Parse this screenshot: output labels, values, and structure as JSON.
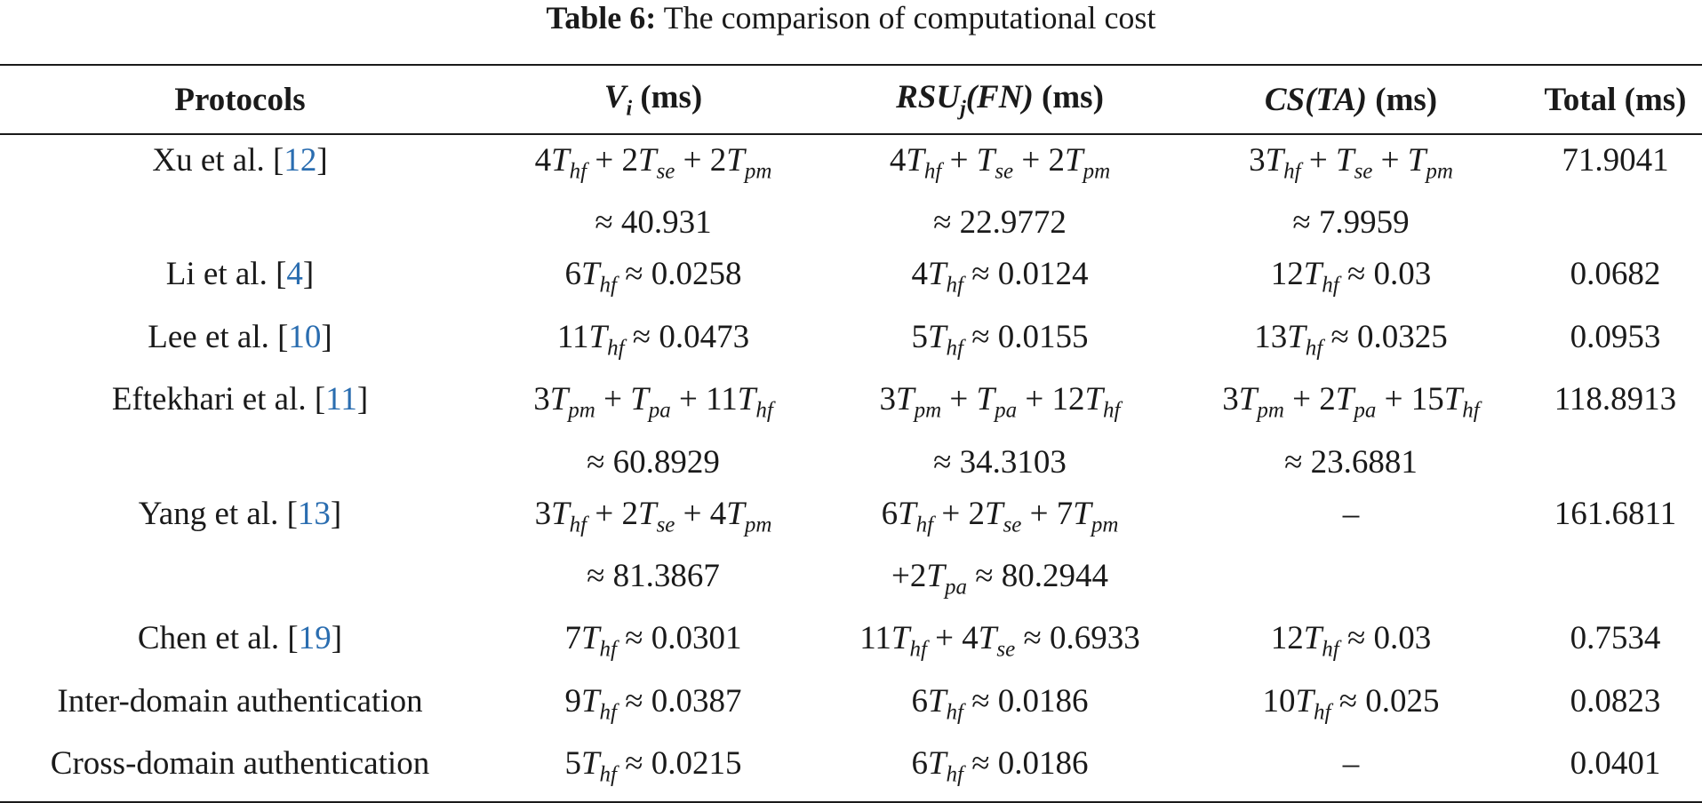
{
  "caption": {
    "label": "Table 6:",
    "text": "The comparison of computational cost"
  },
  "table": {
    "headers": [
      {
        "pre": "",
        "math": "Protocols",
        "post": ""
      },
      {
        "pre": "",
        "math": "V_i",
        "post": " (ms)"
      },
      {
        "pre": "",
        "math": "RSU_j(FN)",
        "post": " (ms)"
      },
      {
        "pre": "",
        "math": "CS(TA)",
        "post": " (ms)"
      },
      {
        "pre": "",
        "math": "Total (ms)",
        "post": ""
      }
    ],
    "rows": [
      {
        "protocol": "Xu et al. [",
        "ref": "12",
        "close": "]",
        "vi": [
          "4T_hf + 2T_se + 2T_pm",
          "≈ 40.931"
        ],
        "rsu": [
          "4T_hf + T_se + 2T_pm",
          "≈ 22.9772"
        ],
        "cs": [
          "3T_hf + T_se + T_pm",
          "≈ 7.9959"
        ],
        "total": "71.9041"
      },
      {
        "protocol": "Li et al. [",
        "ref": "4",
        "close": "]",
        "vi": [
          "6T_hf ≈ 0.0258"
        ],
        "rsu": [
          "4T_hf ≈ 0.0124"
        ],
        "cs": [
          "12T_hf ≈ 0.03"
        ],
        "total": "0.0682"
      },
      {
        "protocol": "Lee et al. [",
        "ref": "10",
        "close": "]",
        "vi": [
          "11T_hf ≈ 0.0473"
        ],
        "rsu": [
          "5T_hf ≈ 0.0155"
        ],
        "cs": [
          "13T_hf ≈ 0.0325"
        ],
        "total": "0.0953"
      },
      {
        "protocol": "Eftekhari et al. [",
        "ref": "11",
        "close": "]",
        "vi": [
          "3T_pm + T_pa + 11T_hf",
          "≈ 60.8929"
        ],
        "rsu": [
          "3T_pm + T_pa + 12T_hf",
          "≈ 34.3103"
        ],
        "cs": [
          "3T_pm + 2T_pa + 15T_hf",
          "≈ 23.6881"
        ],
        "total": "118.8913"
      },
      {
        "protocol": "Yang et al. [",
        "ref": "13",
        "close": "]",
        "vi": [
          "3T_hf + 2T_se + 4T_pm",
          "≈ 81.3867"
        ],
        "rsu": [
          "6T_hf + 2T_se + 7T_pm",
          "+2T_pa ≈ 80.2944"
        ],
        "cs": [
          "–"
        ],
        "total": "161.6811"
      },
      {
        "protocol": "Chen et al. [",
        "ref": "19",
        "close": "]",
        "vi": [
          "7T_hf ≈ 0.0301"
        ],
        "rsu": [
          "11T_hf + 4T_se ≈ 0.6933"
        ],
        "cs": [
          "12T_hf ≈ 0.03"
        ],
        "total": "0.7534"
      },
      {
        "protocol": "Inter-domain authentication",
        "ref": "",
        "close": "",
        "vi": [
          "9T_hf ≈ 0.0387"
        ],
        "rsu": [
          "6T_hf ≈ 0.0186"
        ],
        "cs": [
          "10T_hf ≈ 0.025"
        ],
        "total": "0.0823"
      },
      {
        "protocol": "Cross-domain authentication",
        "ref": "",
        "close": "",
        "vi": [
          "5T_hf ≈ 0.0215"
        ],
        "rsu": [
          "6T_hf ≈ 0.0186"
        ],
        "cs": [
          "–"
        ],
        "total": "0.0401"
      }
    ]
  }
}
